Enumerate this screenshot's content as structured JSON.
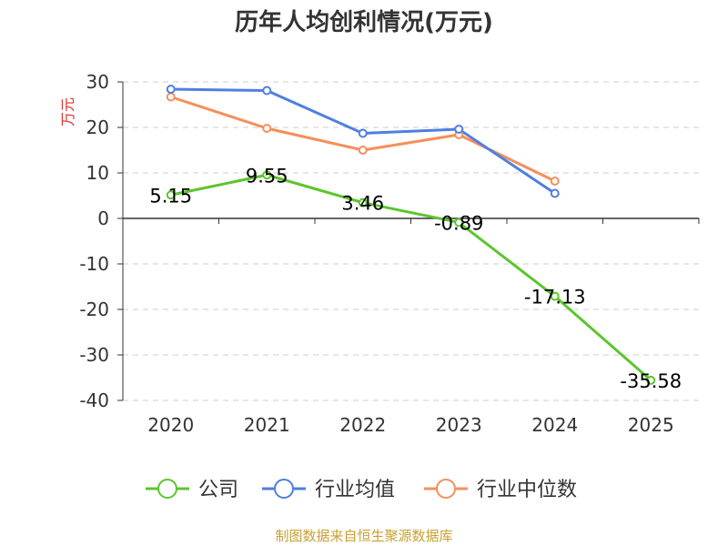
{
  "chart_data": {
    "type": "line",
    "title": "历年人均创利情况(万元)",
    "ylabel": "万元",
    "xlabel": "",
    "categories": [
      "2020",
      "2021",
      "2022",
      "2023",
      "2024",
      "2025"
    ],
    "ylim": [
      -40,
      30
    ],
    "yticks": [
      30,
      20,
      10,
      0,
      -10,
      -20,
      -30,
      -40
    ],
    "grid": true,
    "legend_position": "bottom",
    "series": [
      {
        "name": "公司",
        "color": "#5cc52c",
        "values": [
          5.15,
          9.55,
          3.46,
          -0.89,
          -17.13,
          -35.58
        ],
        "labels": [
          "5.15",
          "9.55",
          "3.46",
          "-0.89",
          "-17.13",
          "-35.58"
        ]
      },
      {
        "name": "行业均值",
        "color": "#4f7fe0",
        "values": [
          28.4,
          28.1,
          18.7,
          19.6,
          5.5,
          null
        ]
      },
      {
        "name": "行业中位数",
        "color": "#f58f5a",
        "values": [
          26.7,
          19.8,
          15.0,
          18.4,
          8.2,
          null
        ]
      }
    ]
  },
  "footer": "制图数据来自恒生聚源数据库"
}
